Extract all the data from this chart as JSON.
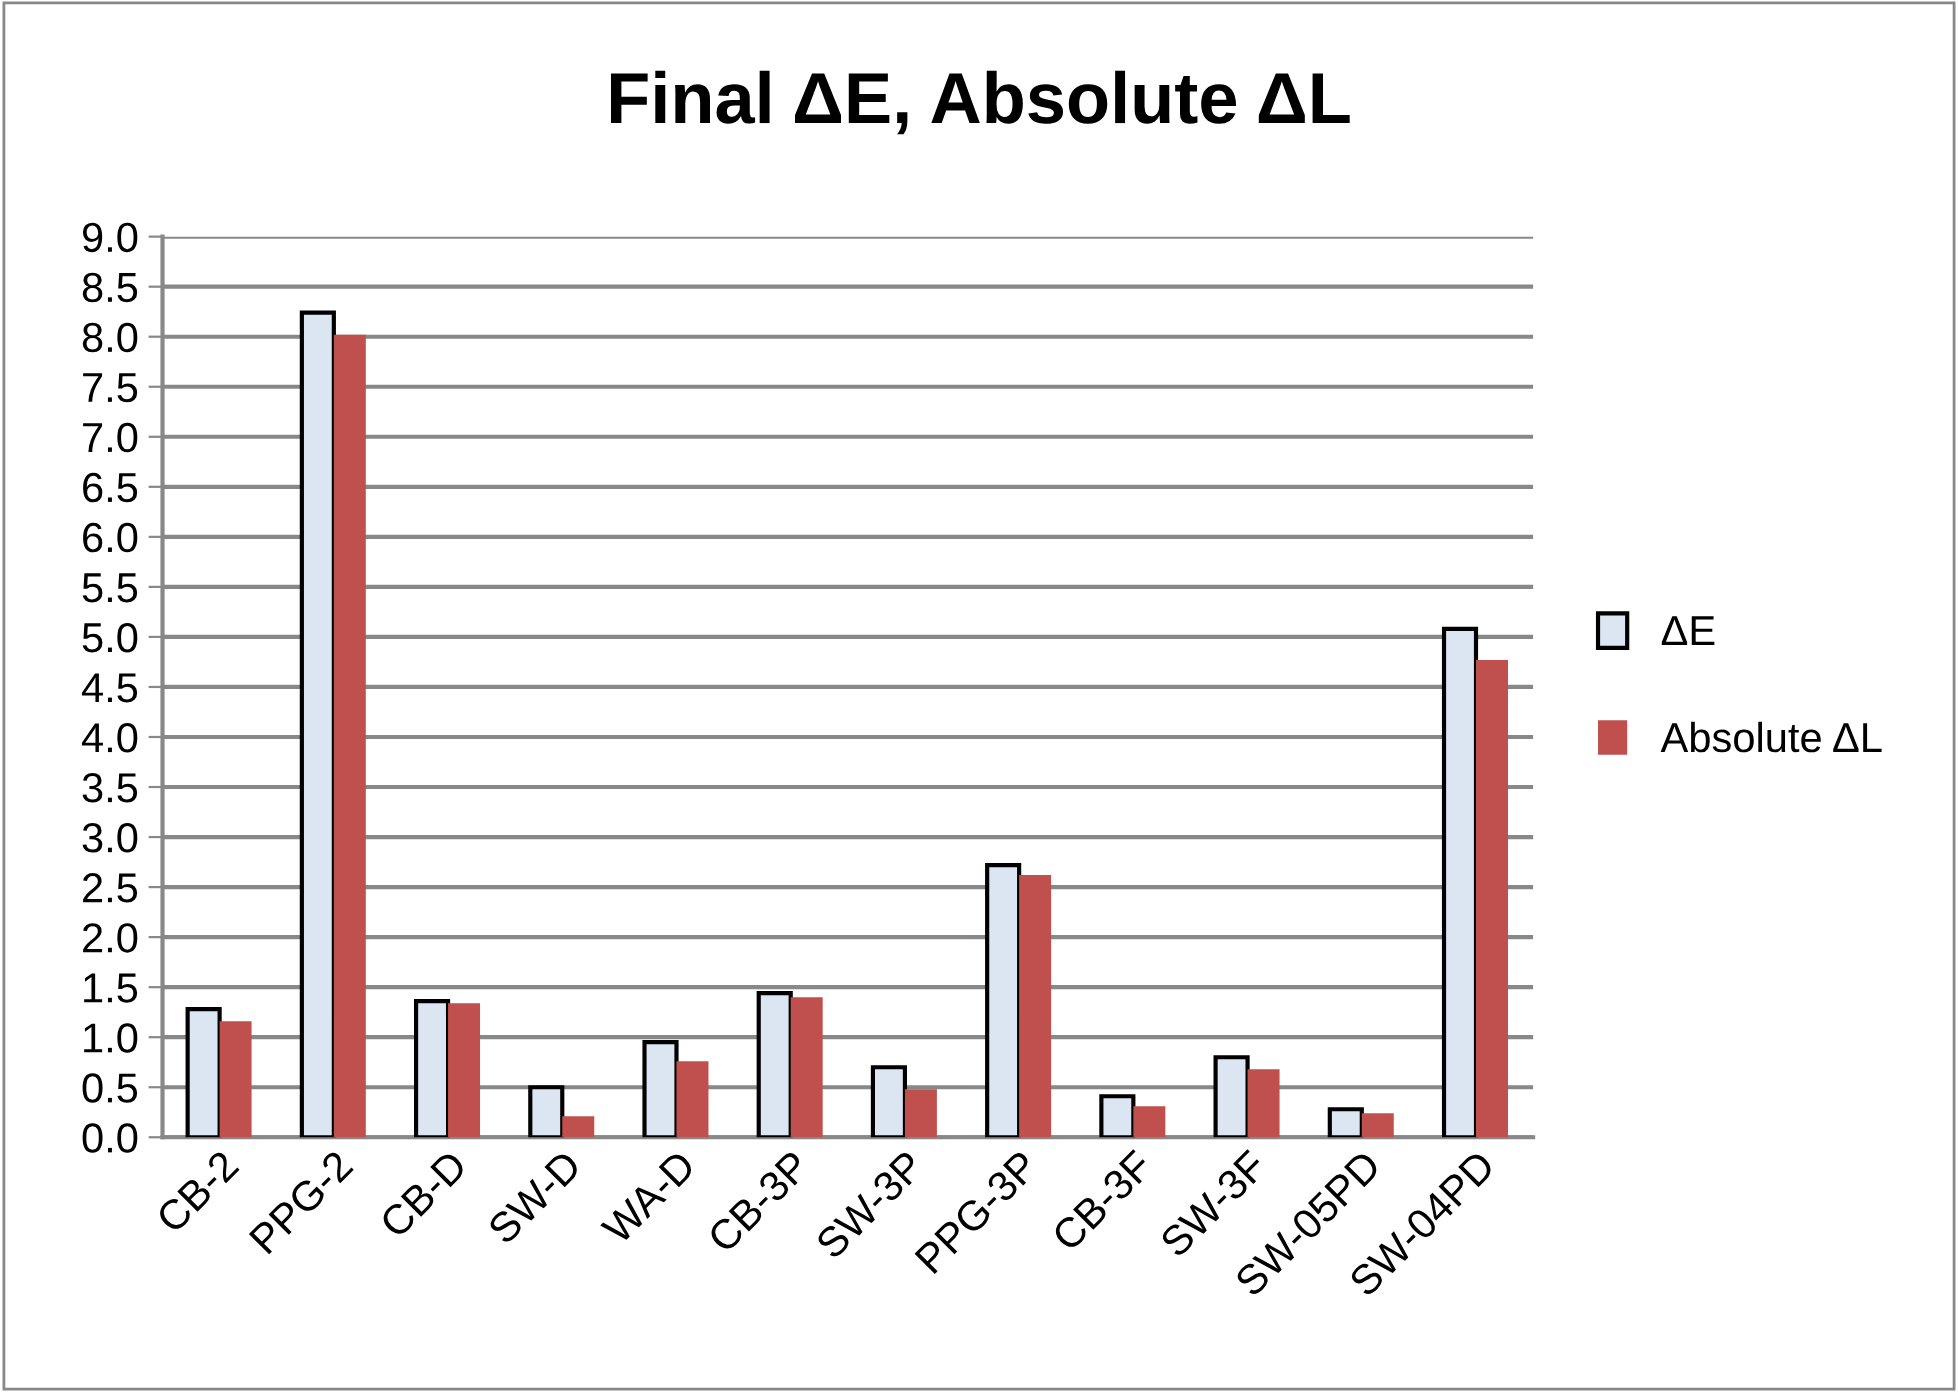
{
  "chart_data": {
    "type": "bar",
    "title": "Final ΔE, Absolute ΔL",
    "categories": [
      "CB-2",
      "PPG-2",
      "CB-D",
      "SW-D",
      "WA-D",
      "CB-3P",
      "SW-3P",
      "PPG-3P",
      "CB-3F",
      "SW-3F",
      "SW-05PD",
      "SW-04PD"
    ],
    "series": [
      {
        "name": "ΔE",
        "color": "#dce6f2",
        "values": [
          1.28,
          8.24,
          1.36,
          0.5,
          0.95,
          1.44,
          0.7,
          2.72,
          0.41,
          0.8,
          0.28,
          5.08
        ]
      },
      {
        "name": "Absolute ΔL",
        "color": "#c0504d",
        "values": [
          1.16,
          8.02,
          1.34,
          0.21,
          0.76,
          1.4,
          0.48,
          2.62,
          0.31,
          0.68,
          0.24,
          4.77
        ]
      }
    ],
    "ylim": [
      0,
      9
    ],
    "yticks": [
      {
        "value": 0,
        "label": "0.0"
      },
      {
        "value": 0.5,
        "label": "0.5"
      },
      {
        "value": 1,
        "label": "1.0"
      },
      {
        "value": 1.5,
        "label": "1.5"
      },
      {
        "value": 2,
        "label": "2.0"
      },
      {
        "value": 2.5,
        "label": "2.5"
      },
      {
        "value": 3,
        "label": "3.0"
      },
      {
        "value": 3.5,
        "label": "3.5"
      },
      {
        "value": 4,
        "label": "4.0"
      },
      {
        "value": 4.5,
        "label": "4.5"
      },
      {
        "value": 5,
        "label": "5.0"
      },
      {
        "value": 5.5,
        "label": "5.5"
      },
      {
        "value": 6,
        "label": "6.0"
      },
      {
        "value": 6.5,
        "label": "6.5"
      },
      {
        "value": 7,
        "label": "7.0"
      },
      {
        "value": 7.5,
        "label": "7.5"
      },
      {
        "value": 8,
        "label": "8.0"
      },
      {
        "value": 8.5,
        "label": "8.5"
      },
      {
        "value": 9,
        "label": "9.0"
      }
    ],
    "grid": "y",
    "legend": "right"
  }
}
